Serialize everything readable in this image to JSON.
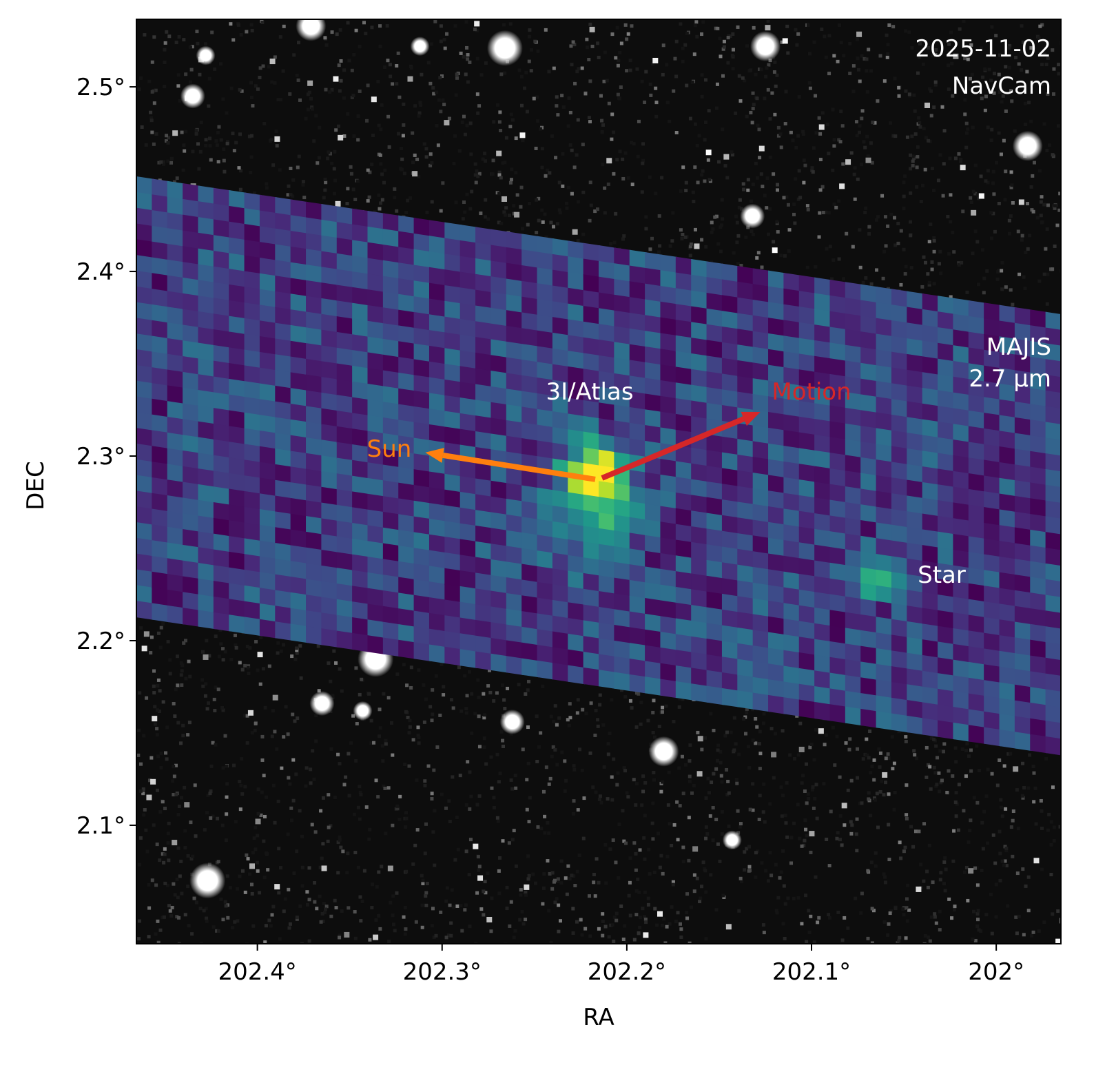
{
  "chart_data": {
    "type": "heatmap",
    "title": "",
    "xlabel": "RA",
    "ylabel": "DEC",
    "xlim": [
      202.4655,
      201.965
    ],
    "ylim": [
      2.0358,
      2.5366
    ],
    "x_reversed": true,
    "grid": false,
    "xticks": [
      {
        "value": 202.4,
        "label": "202.4°"
      },
      {
        "value": 202.3,
        "label": "202.3°"
      },
      {
        "value": 202.2,
        "label": "202.2°"
      },
      {
        "value": 202.1,
        "label": "202.1°"
      },
      {
        "value": 202.0,
        "label": "202°"
      }
    ],
    "yticks": [
      {
        "value": 2.5,
        "label": "2.5°"
      },
      {
        "value": 2.4,
        "label": "2.4°"
      },
      {
        "value": 2.3,
        "label": "2.3°"
      },
      {
        "value": 2.2,
        "label": "2.2°"
      },
      {
        "value": 2.1,
        "label": "2.1°"
      }
    ],
    "background_image": {
      "name": "NavCam",
      "colormap": "gray"
    },
    "overlay": {
      "name": "MAJIS",
      "wavelength": "2.7 µm",
      "colormap": "viridis",
      "footprint_corners": [
        [
          202.4655,
          2.4515
        ],
        [
          201.965,
          2.3769
        ],
        [
          201.965,
          2.1384
        ],
        [
          202.4655,
          2.2131
        ]
      ]
    },
    "bright_stars": [
      [
        202.428,
        2.517
      ],
      [
        202.435,
        2.495
      ],
      [
        202.371,
        2.533
      ],
      [
        202.266,
        2.521
      ],
      [
        202.312,
        2.522
      ],
      [
        202.132,
        2.43
      ],
      [
        201.983,
        2.468
      ],
      [
        202.336,
        2.19
      ],
      [
        202.343,
        2.162
      ],
      [
        202.262,
        2.156
      ],
      [
        202.18,
        2.14
      ],
      [
        202.427,
        2.07
      ],
      [
        202.143,
        2.092
      ],
      [
        202.365,
        2.166
      ],
      [
        202.125,
        2.522
      ]
    ],
    "targets": [
      {
        "label": "3I/Atlas",
        "ra": 202.2153,
        "dec": 2.2896
      },
      {
        "label": "Star",
        "ra": 202.0644,
        "dec": 2.2354
      }
    ],
    "arrows": [
      {
        "label": "Sun",
        "color": "#ff7f0e",
        "from": [
          202.2171,
          2.2874
        ],
        "to": [
          202.3091,
          2.3019
        ]
      },
      {
        "label": "Motion",
        "color": "#d62728",
        "from": [
          202.2134,
          2.2881
        ],
        "to": [
          202.1277,
          2.3239
        ]
      }
    ],
    "annotations": {
      "date": "2025-11-02",
      "camera": "NavCam",
      "instrument": "MAJIS",
      "wavelength": "2.7 µm",
      "target": "3I/Atlas",
      "sun": "Sun",
      "motion": "Motion",
      "star": "Star"
    }
  }
}
